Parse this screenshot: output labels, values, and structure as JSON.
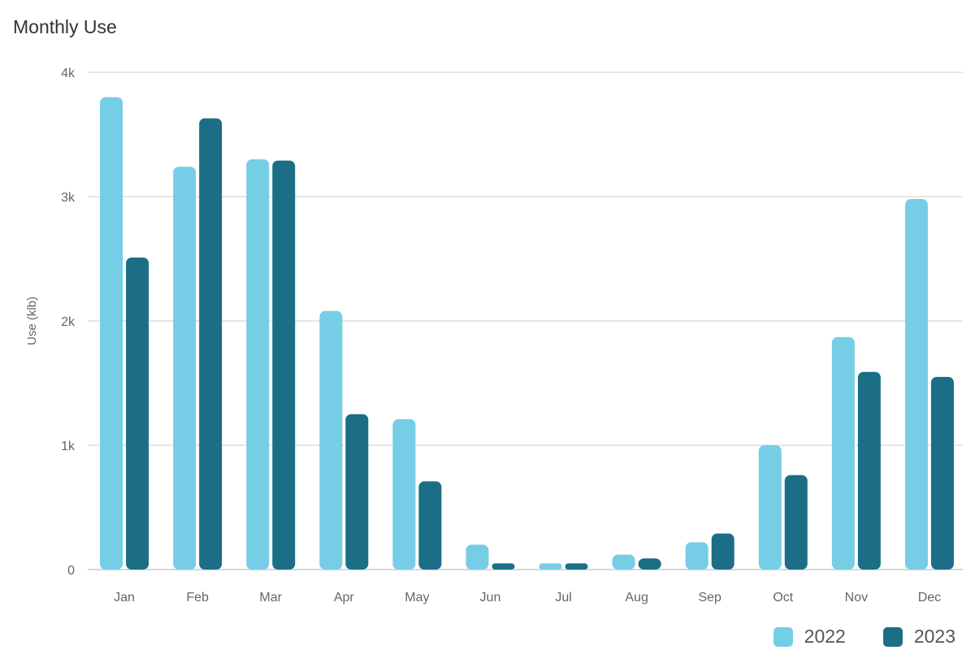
{
  "chart_data": {
    "type": "bar",
    "title": "Monthly Use",
    "xlabel": "",
    "ylabel": "Use (klb)",
    "ylim": [
      0,
      4000
    ],
    "yticks": [
      0,
      1000,
      2000,
      3000,
      4000
    ],
    "ytick_labels": [
      "0",
      "1k",
      "2k",
      "3k",
      "4k"
    ],
    "grid": true,
    "legend_position": "bottom-right",
    "categories": [
      "Jan",
      "Feb",
      "Mar",
      "Apr",
      "May",
      "Jun",
      "Jul",
      "Aug",
      "Sep",
      "Oct",
      "Nov",
      "Dec"
    ],
    "series": [
      {
        "name": "2022",
        "color": "#76cde6",
        "values": [
          3800,
          3240,
          3300,
          2080,
          1210,
          200,
          50,
          120,
          220,
          1000,
          1870,
          2980
        ]
      },
      {
        "name": "2023",
        "color": "#1b6e85",
        "values": [
          2510,
          3630,
          3290,
          1250,
          710,
          50,
          50,
          90,
          290,
          760,
          1590,
          1550
        ]
      }
    ]
  }
}
